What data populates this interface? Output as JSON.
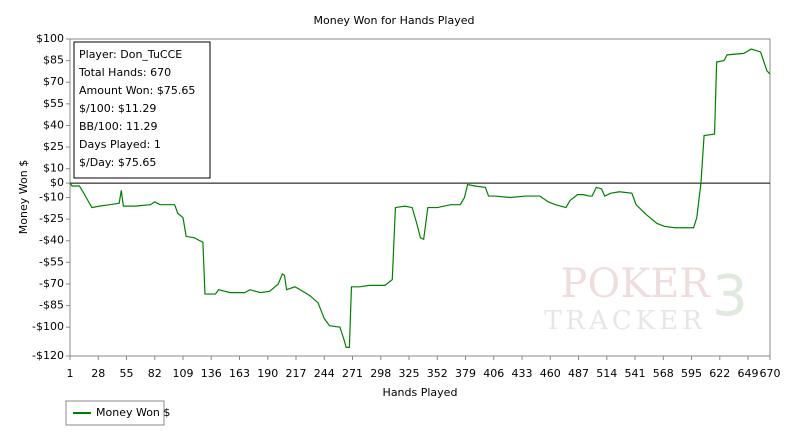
{
  "chart_data": {
    "type": "line",
    "title": "Money Won for Hands Played",
    "xlabel": "Hands Played",
    "ylabel": "Money Won $",
    "xlim": [
      1,
      670
    ],
    "ylim": [
      -120,
      100
    ],
    "xticks": [
      1,
      28,
      55,
      82,
      109,
      136,
      163,
      190,
      217,
      244,
      271,
      298,
      325,
      352,
      379,
      406,
      433,
      460,
      487,
      514,
      541,
      568,
      595,
      622,
      649,
      670
    ],
    "yticks": [
      {
        "value": 100,
        "label": "$100"
      },
      {
        "value": 85,
        "label": "$85"
      },
      {
        "value": 70,
        "label": "$70"
      },
      {
        "value": 55,
        "label": "$55"
      },
      {
        "value": 40,
        "label": "$40"
      },
      {
        "value": 25,
        "label": "$25"
      },
      {
        "value": 10,
        "label": "$10"
      },
      {
        "value": 0,
        "label": "$0"
      },
      {
        "value": -10,
        "label": "-$10"
      },
      {
        "value": -25,
        "label": "-$25"
      },
      {
        "value": -40,
        "label": "-$40"
      },
      {
        "value": -55,
        "label": "-$55"
      },
      {
        "value": -70,
        "label": "-$70"
      },
      {
        "value": -85,
        "label": "-$85"
      },
      {
        "value": -100,
        "label": "-$100"
      },
      {
        "value": -120,
        "label": "-$120"
      }
    ],
    "x": [
      1,
      3,
      10,
      15,
      18,
      22,
      29,
      39,
      48,
      50,
      52,
      63,
      78,
      82,
      87,
      101,
      104,
      109,
      112,
      120,
      125,
      128,
      130,
      140,
      143,
      154,
      168,
      173,
      183,
      192,
      200,
      204,
      206,
      208,
      216,
      221,
      230,
      238,
      244,
      249,
      259,
      263,
      265,
      268,
      270,
      278,
      287,
      302,
      309,
      312,
      321,
      328,
      332,
      336,
      339,
      343,
      352,
      365,
      374,
      378,
      381,
      388,
      398,
      401,
      407,
      422,
      436,
      450,
      458,
      465,
      475,
      479,
      486,
      492,
      497,
      500,
      504,
      509,
      512,
      518,
      526,
      538,
      542,
      552,
      562,
      569,
      579,
      597,
      600,
      604,
      607,
      617,
      619,
      626,
      629,
      645,
      652,
      661,
      667,
      670
    ],
    "series": [
      {
        "name": "Money Won $",
        "color": "#008000",
        "values": [
          0,
          -2,
          -2,
          -8,
          -12,
          -17,
          -16,
          -15,
          -14,
          -5,
          -16,
          -16,
          -15,
          -13,
          -15,
          -15,
          -21,
          -24,
          -37,
          -38,
          -40,
          -41,
          -77,
          -77,
          -74,
          -76,
          -76,
          -74,
          -76,
          -75,
          -70,
          -63,
          -64,
          -74,
          -72,
          -74,
          -78,
          -83,
          -94,
          -99,
          -100,
          -109,
          -114,
          -114,
          -72,
          -72,
          -71,
          -71,
          -67,
          -17,
          -16,
          -17,
          -27,
          -38,
          -39,
          -17,
          -17,
          -15,
          -15,
          -10,
          -1,
          -2,
          -3,
          -9,
          -9,
          -10,
          -9,
          -9,
          -13,
          -15,
          -17,
          -12,
          -8,
          -8,
          -9,
          -9,
          -3,
          -4,
          -9,
          -7,
          -6,
          -7,
          -15,
          -22,
          -28,
          -30,
          -31,
          -31,
          -24,
          0,
          33,
          34,
          84,
          85,
          89,
          90,
          93,
          91,
          78,
          75.65
        ]
      }
    ],
    "annotations": [
      "Player: Don_TuCCE",
      "Total Hands: 670",
      "Amount Won: $75.65",
      "$/100: $11.29",
      "BB/100: 11.29",
      "Days Played: 1",
      "$/Day: $75.65"
    ],
    "watermark": [
      "POKER",
      "TRACKER",
      "3"
    ]
  }
}
